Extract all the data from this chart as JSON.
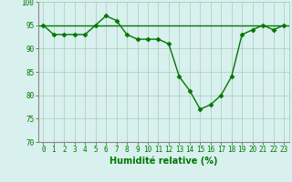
{
  "hours": [
    0,
    1,
    2,
    3,
    4,
    5,
    6,
    7,
    8,
    9,
    10,
    11,
    12,
    13,
    14,
    15,
    16,
    17,
    18,
    19,
    20,
    21,
    22,
    23
  ],
  "humidity": [
    95,
    93,
    93,
    93,
    93,
    95,
    97,
    96,
    93,
    92,
    92,
    92,
    91,
    84,
    81,
    77,
    78,
    80,
    84,
    93,
    94,
    95,
    94,
    95
  ],
  "flat_line": 95,
  "line_color": "#007700",
  "bg_color": "#d8f0ee",
  "grid_color": "#aaccbb",
  "xlabel": "Humidité relative (%)",
  "xlabel_color": "#007700",
  "ylim": [
    70,
    100
  ],
  "yticks": [
    70,
    75,
    80,
    85,
    90,
    95,
    100
  ],
  "xticks": [
    0,
    1,
    2,
    3,
    4,
    5,
    6,
    7,
    8,
    9,
    10,
    11,
    12,
    13,
    14,
    15,
    16,
    17,
    18,
    19,
    20,
    21,
    22,
    23
  ],
  "tick_color": "#007700",
  "marker": "D",
  "marker_size": 2.5,
  "linewidth": 1.0,
  "tick_fontsize": 5.5,
  "xlabel_fontsize": 7.0
}
